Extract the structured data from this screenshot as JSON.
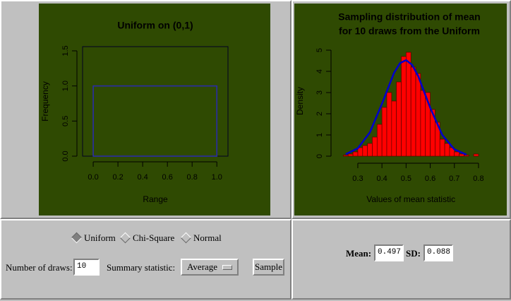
{
  "chart_data": [
    {
      "type": "histogram",
      "title": "Uniform on (0,1)",
      "x_label": "Range",
      "y_label": "Frequency",
      "bins": [
        0,
        1
      ],
      "values": [
        1
      ],
      "color": "#2a2ab0",
      "filled": false,
      "box": true,
      "xlim": [
        -0.086,
        1.09
      ],
      "ylim": [
        0,
        1.56
      ],
      "xticks": [
        {
          "value": 0,
          "label": "0.0"
        },
        0.2,
        0.4,
        0.6,
        0.8,
        {
          "value": 1,
          "label": "1.0"
        }
      ],
      "yticks": [
        {
          "value": 0,
          "label": "0.0"
        },
        0.5,
        {
          "value": 1,
          "label": "1.0"
        },
        1.5
      ]
    },
    {
      "type": "histogram",
      "title": "Sampling distribution of mean",
      "subtitle": "for 10 draws from the Uniform",
      "x_label": "Values of mean statistic",
      "y_label": "Density",
      "bins": [
        0.24,
        0.26,
        0.28,
        0.3,
        0.32,
        0.34,
        0.36,
        0.38,
        0.4,
        0.42,
        0.44,
        0.46,
        0.48,
        0.5,
        0.52,
        0.54,
        0.56,
        0.58,
        0.6,
        0.62,
        0.64,
        0.66,
        0.68,
        0.7,
        0.72,
        0.74,
        0.76,
        0.78,
        0.8
      ],
      "values": [
        0.05,
        0.1,
        0.2,
        0.4,
        0.5,
        0.6,
        0.9,
        1.5,
        2.3,
        3.0,
        2.6,
        3.5,
        4.7,
        4.9,
        4.2,
        3.9,
        3.1,
        3.0,
        2.2,
        1.6,
        0.8,
        0.6,
        0.4,
        0.2,
        0.1,
        0.05,
        0,
        0.1
      ],
      "color": "#ff0000",
      "filled": true,
      "box": false,
      "curve": {
        "x": [
          0.25,
          0.3,
          0.35,
          0.4,
          0.45,
          0.475,
          0.5,
          0.525,
          0.55,
          0.6,
          0.65,
          0.7,
          0.75
        ],
        "values": [
          0.09,
          0.37,
          1.12,
          2.47,
          3.93,
          4.39,
          4.53,
          4.31,
          3.78,
          2.28,
          1.0,
          0.32,
          0.07
        ],
        "color": "#0000cc"
      },
      "xlim": [
        0.22,
        0.82
      ],
      "ylim": [
        0,
        5.2
      ],
      "xticks": [
        0.3,
        0.4,
        0.5,
        0.6,
        0.7,
        0.8
      ],
      "yticks": [
        0,
        1,
        2,
        3,
        4,
        5
      ]
    }
  ],
  "controls": {
    "distributions": [
      {
        "label": "Uniform",
        "selected": true
      },
      {
        "label": "Chi-Square",
        "selected": false
      },
      {
        "label": "Normal",
        "selected": false
      }
    ],
    "draws_label": "Number of draws:",
    "draws": 10,
    "statistic_label": "Summary statistic:",
    "statistic": "Average",
    "button": "Sample"
  },
  "results": {
    "mean_label": "Mean:",
    "mean": 0.497,
    "sd_label": "SD:",
    "sd": 0.088
  }
}
